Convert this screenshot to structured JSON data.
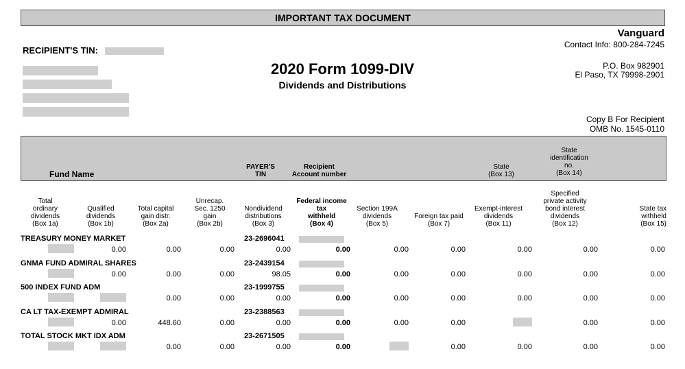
{
  "header": {
    "banner": "IMPORTANT TAX DOCUMENT",
    "payer_name": "Vanguard",
    "contact": "Contact Info: 800-284-7245",
    "recipient_tin_label": "RECIPIENT'S TIN:",
    "form_title": "2020 Form 1099-DIV",
    "form_subtitle": "Dividends and Distributions",
    "address_line1": "P.O. Box 982901",
    "address_line2": "El Paso, TX 79998-2901",
    "copy": "Copy B For Recipient",
    "omb": "OMB No. 1545-0110"
  },
  "columns_top": {
    "fund_name": "Fund Name",
    "payer_tin": [
      "PAYER'S",
      "TIN"
    ],
    "recipient_account": [
      "Recipient",
      "Account number"
    ],
    "state": [
      "State",
      "(Box 13)"
    ],
    "state_id": [
      "State",
      "identification",
      "no.",
      "(Box 14)"
    ]
  },
  "columns": [
    {
      "lines": [
        "Total",
        "ordinary",
        "dividends",
        "(Box 1a)"
      ],
      "bold": false
    },
    {
      "lines": [
        "Qualified",
        "dividends",
        "(Box 1b)"
      ],
      "bold": false
    },
    {
      "lines": [
        "Total capital",
        "gain distr.",
        "(Box 2a)"
      ],
      "bold": false
    },
    {
      "lines": [
        "Unrecap.",
        "Sec. 1250",
        "gain",
        "(Box 2b)"
      ],
      "bold": false
    },
    {
      "lines": [
        "Nondividend",
        "distributions",
        "(Box 3)"
      ],
      "bold": false
    },
    {
      "lines": [
        "Federal income",
        "tax",
        "withheld",
        "(Box 4)"
      ],
      "bold": true
    },
    {
      "lines": [
        "Section 199A",
        "dividends",
        "(Box 5)"
      ],
      "bold": false
    },
    {
      "lines": [
        "Foreign tax paid",
        "(Box 7)"
      ],
      "bold": false
    },
    {
      "lines": [
        "Exempt-interest",
        "dividends",
        "(Box 11)"
      ],
      "bold": false
    },
    {
      "lines": [
        "Specified",
        "private activity",
        "bond interest",
        "dividends",
        "(Box 12)"
      ],
      "bold": false
    },
    {
      "lines": [
        "State tax",
        "withheld",
        "(Box 15)"
      ],
      "bold": false
    }
  ],
  "funds": [
    {
      "name": "TREASURY MONEY MARKET",
      "tin": "23-2696041",
      "values": [
        "",
        "0.00",
        "0.00",
        "0.00",
        "0.00",
        "0.00",
        "0.00",
        "0.00",
        "0.00",
        "0.00",
        "0.00"
      ]
    },
    {
      "name": "GNMA FUND ADMIRAL SHARES",
      "tin": "23-2439154",
      "values": [
        "",
        "0.00",
        "0.00",
        "0.00",
        "98.05",
        "0.00",
        "0.00",
        "0.00",
        "0.00",
        "0.00",
        "0.00"
      ]
    },
    {
      "name": "500 INDEX FUND ADM",
      "tin": "23-1999755",
      "values": [
        "",
        "",
        "0.00",
        "0.00",
        "0.00",
        "0.00",
        "0.00",
        "0.00",
        "0.00",
        "0.00",
        "0.00"
      ]
    },
    {
      "name": "CA LT TAX-EXEMPT ADMIRAL",
      "tin": "23-2388563",
      "values": [
        "",
        "0.00",
        "448.60",
        "0.00",
        "0.00",
        "0.00",
        "0.00",
        "0.00",
        "",
        "0.00",
        "0.00"
      ]
    },
    {
      "name": "TOTAL STOCK MKT IDX ADM",
      "tin": "23-2671505",
      "values": [
        "",
        "",
        "0.00",
        "0.00",
        "0.00",
        "0.00",
        "",
        "0.00",
        "0.00",
        "0.00",
        "0.00"
      ]
    }
  ]
}
